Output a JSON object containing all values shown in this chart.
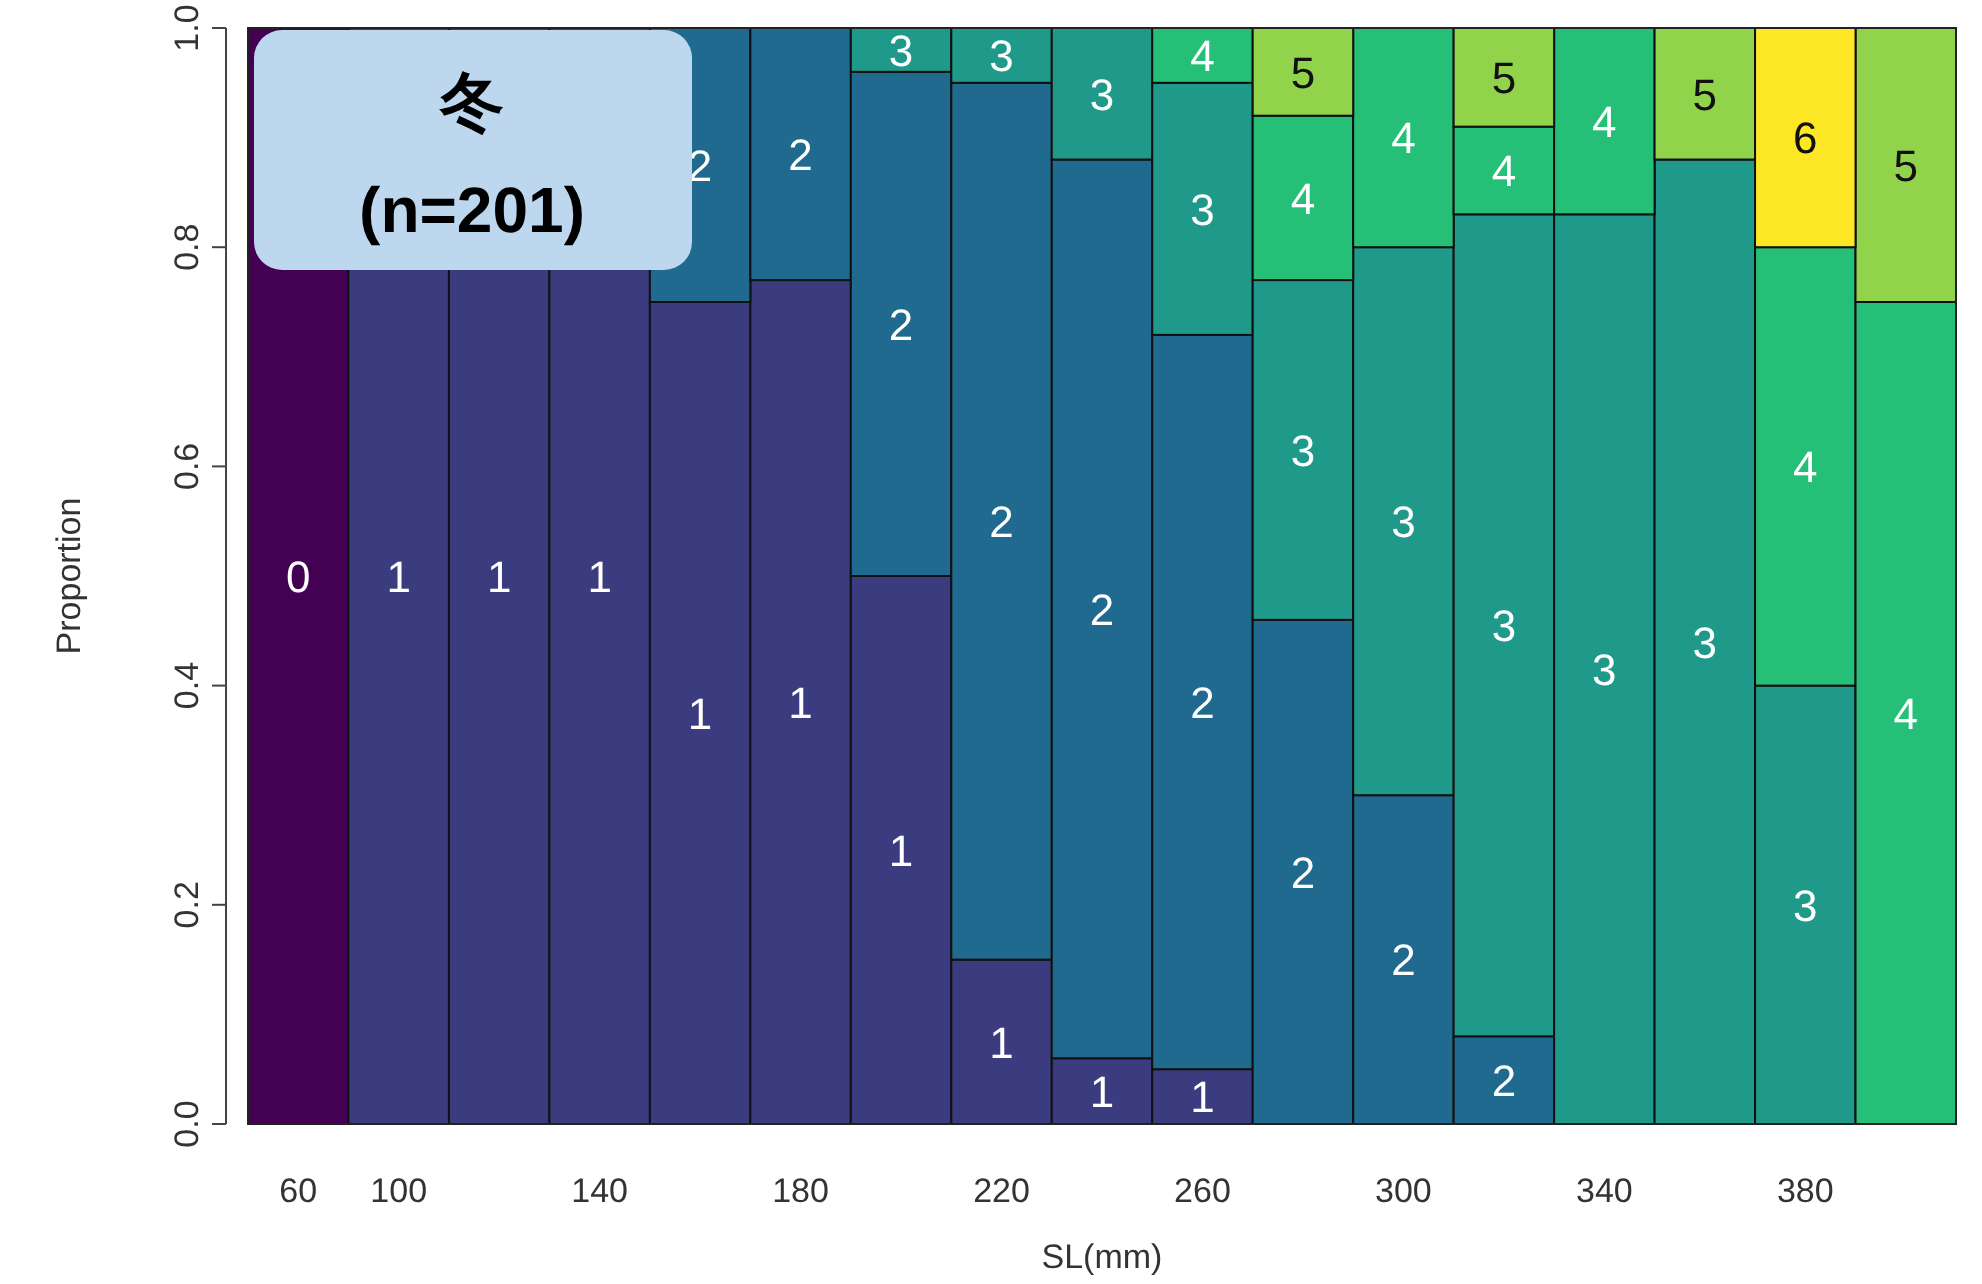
{
  "chart_data": {
    "type": "bar",
    "stacked": true,
    "title": "冬",
    "subtitle": "(n=201)",
    "xlabel": "SL(mm)",
    "ylabel": "Proportion",
    "categories": [
      "60",
      "100",
      null,
      "140",
      null,
      "180",
      null,
      "220",
      null,
      "260",
      null,
      "300",
      null,
      "340",
      null,
      "380",
      null
    ],
    "ylim": [
      0,
      1
    ],
    "yticks": [
      {
        "value": 0,
        "label": "0.0"
      },
      {
        "value": 0.2,
        "label": "0.2"
      },
      {
        "value": 0.4,
        "label": "0.4"
      },
      {
        "value": 0.6,
        "label": "0.6"
      },
      {
        "value": 0.8,
        "label": "0.8"
      },
      {
        "value": 1,
        "label": "1.0"
      }
    ],
    "series": [
      {
        "name": "0",
        "color": "#440154",
        "values": [
          1,
          null,
          null,
          null,
          null,
          null,
          null,
          null,
          null,
          null,
          null,
          null,
          null,
          null,
          null,
          null,
          null
        ]
      },
      {
        "name": "1",
        "color": "#3b3b7f",
        "values": [
          null,
          1,
          1,
          1,
          0.75,
          0.77,
          0.5,
          0.15,
          0.06,
          0.05,
          null,
          null,
          null,
          null,
          null,
          null,
          null
        ]
      },
      {
        "name": "2",
        "color": "#1f6a8e",
        "values": [
          null,
          null,
          null,
          null,
          0.25,
          0.23,
          0.46,
          0.8,
          0.82,
          0.67,
          0.46,
          0.3,
          0.08,
          null,
          null,
          null,
          null
        ]
      },
      {
        "name": "3",
        "color": "#1f9a8a",
        "values": [
          null,
          null,
          null,
          null,
          null,
          null,
          0.04,
          0.05,
          0.12,
          0.23,
          0.31,
          0.5,
          0.75,
          0.83,
          0.88,
          0.4,
          null
        ]
      },
      {
        "name": "4",
        "color": "#26bf78",
        "values": [
          null,
          null,
          null,
          null,
          null,
          null,
          null,
          null,
          null,
          0.05,
          0.15,
          0.2,
          0.08,
          0.17,
          null,
          0.4,
          0.75
        ]
      },
      {
        "name": "5",
        "color": "#92d34c",
        "values": [
          null,
          null,
          null,
          null,
          null,
          null,
          null,
          null,
          null,
          null,
          0.08,
          null,
          0.09,
          null,
          0.12,
          null,
          0.25
        ]
      },
      {
        "name": "6",
        "color": "#fde725",
        "values": [
          null,
          null,
          null,
          null,
          null,
          null,
          null,
          null,
          null,
          null,
          null,
          null,
          null,
          null,
          null,
          0.2,
          null
        ]
      }
    ]
  }
}
